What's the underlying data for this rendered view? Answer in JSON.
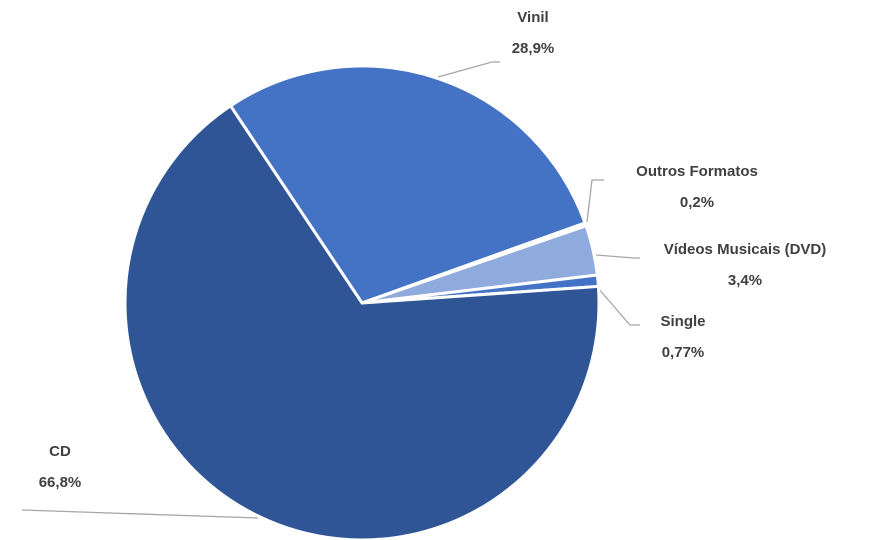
{
  "chart_data": {
    "type": "pie",
    "categories": [
      "Vinil",
      "Outros Formatos",
      "Vídeos Musicais (DVD)",
      "Single",
      "CD"
    ],
    "values": [
      28.9,
      0.2,
      3.4,
      0.77,
      66.8
    ],
    "value_labels": [
      "28,9%",
      "0,2%",
      "3,4%",
      "0,77%",
      "66,8%"
    ],
    "colors": [
      "#4472c4",
      "#4472c4",
      "#8faadc",
      "#4472c4",
      "#2f5597"
    ]
  }
}
